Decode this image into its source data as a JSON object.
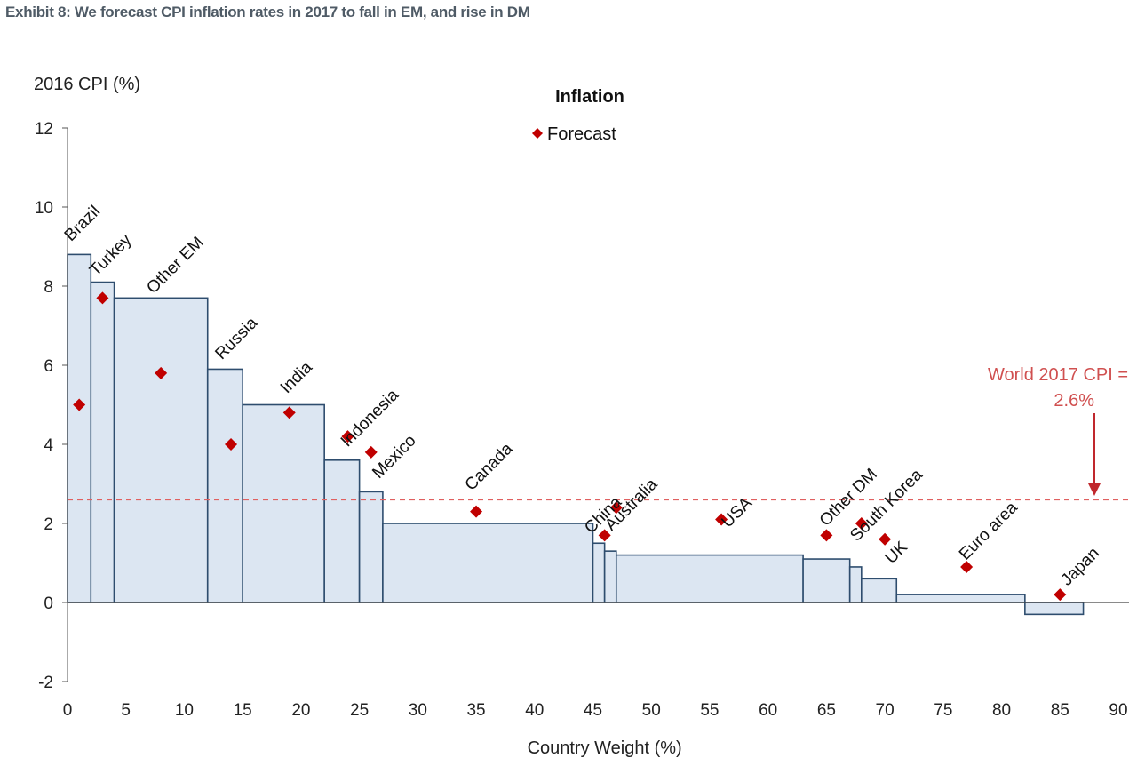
{
  "exhibit_title": "Exhibit 8: We forecast CPI inflation rates in 2017 to fall in EM, and rise in DM",
  "chart_data": {
    "type": "bar",
    "subtype": "variable-width (Marimekko) bars with forecast markers",
    "title": "Inflation",
    "ylabel": "2016 CPI (%)",
    "xlabel": "Country Weight (%)",
    "xlim": [
      0,
      90
    ],
    "ylim": [
      -2,
      12
    ],
    "xticks": [
      "0",
      "5",
      "10",
      "15",
      "20",
      "25",
      "30",
      "35",
      "40",
      "45",
      "50",
      "55",
      "60",
      "65",
      "70",
      "75",
      "80",
      "85",
      "90"
    ],
    "yticks": [
      "-2",
      "0",
      "2",
      "4",
      "6",
      "8",
      "10",
      "12"
    ],
    "legend": {
      "title": "Inflation",
      "entries": [
        "Forecast"
      ],
      "placement": "top-center"
    },
    "colors": {
      "bar_fill": "#dce6f2",
      "bar_stroke": "#2e4d6e",
      "forecast": "#c00000",
      "reference": "#e06060",
      "annotation": "#d05050"
    },
    "bars": [
      {
        "name": "Brazil",
        "x0": 0,
        "x1": 2,
        "cpi2016": 8.8
      },
      {
        "name": "Turkey",
        "x0": 2,
        "x1": 4,
        "cpi2016": 8.1
      },
      {
        "name": "Other EM",
        "x0": 4,
        "x1": 12,
        "cpi2016": 7.7
      },
      {
        "name": "Russia",
        "x0": 12,
        "x1": 15,
        "cpi2016": 5.9
      },
      {
        "name": "India",
        "x0": 15,
        "x1": 22,
        "cpi2016": 5.0
      },
      {
        "name": "Indonesia",
        "x0": 22,
        "x1": 25,
        "cpi2016": 3.6
      },
      {
        "name": "Mexico",
        "x0": 25,
        "x1": 27,
        "cpi2016": 2.8
      },
      {
        "name": "Canada",
        "x0": 27,
        "x1": 45,
        "cpi2016": 2.0
      },
      {
        "name": "China",
        "x0": 45,
        "x1": 46,
        "cpi2016": 1.5
      },
      {
        "name": "Australia",
        "x0": 46,
        "x1": 47,
        "cpi2016": 1.3
      },
      {
        "name": "USA",
        "x0": 47,
        "x1": 63,
        "cpi2016": 1.2
      },
      {
        "name": "Other DM",
        "x0": 63,
        "x1": 67,
        "cpi2016": 1.1
      },
      {
        "name": "South Korea",
        "x0": 67,
        "x1": 68,
        "cpi2016": 0.9
      },
      {
        "name": "UK",
        "x0": 68,
        "x1": 71,
        "cpi2016": 0.6
      },
      {
        "name": "Euro area",
        "x0": 71,
        "x1": 82,
        "cpi2016": 0.2
      },
      {
        "name": "Japan",
        "x0": 82,
        "x1": 87,
        "cpi2016": -0.3
      }
    ],
    "forecast": [
      {
        "name": "Brazil",
        "x": 1,
        "y": 5.0
      },
      {
        "name": "Turkey",
        "x": 3,
        "y": 7.7
      },
      {
        "name": "Other EM",
        "x": 8,
        "y": 5.8
      },
      {
        "name": "Russia",
        "x": 14,
        "y": 4.0
      },
      {
        "name": "India",
        "x": 19,
        "y": 4.8
      },
      {
        "name": "Indonesia",
        "x": 24,
        "y": 4.2
      },
      {
        "name": "Mexico",
        "x": 26,
        "y": 3.8
      },
      {
        "name": "Canada",
        "x": 35,
        "y": 2.3
      },
      {
        "name": "China",
        "x": 46,
        "y": 1.7
      },
      {
        "name": "Australia",
        "x": 47,
        "y": 2.4
      },
      {
        "name": "USA",
        "x": 56,
        "y": 2.1
      },
      {
        "name": "Other DM",
        "x": 65,
        "y": 1.7
      },
      {
        "name": "South Korea",
        "x": 68,
        "y": 2.0
      },
      {
        "name": "UK",
        "x": 70,
        "y": 1.6
      },
      {
        "name": "Euro area",
        "x": 77,
        "y": 0.9
      },
      {
        "name": "Japan",
        "x": 85,
        "y": 0.2
      }
    ],
    "reference_line": {
      "y": 2.6,
      "label_line1": "World 2017 CPI =",
      "label_line2": "2.6%"
    }
  }
}
